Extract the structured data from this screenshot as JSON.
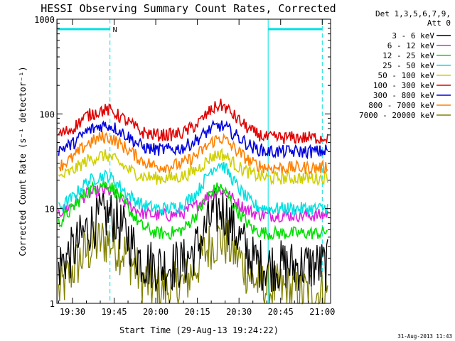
{
  "chart_data": {
    "type": "line",
    "title": "HESSI Observing Summary Count Rates, Corrected",
    "xlabel": "Start Time (29-Aug-13 19:24:22)",
    "ylabel": "Corrected Count Rate (s⁻¹ detector⁻¹)",
    "y_scale": "log",
    "ylim": [
      1,
      1000
    ],
    "xlim": [
      "19:24:22",
      "21:03:00"
    ],
    "x_ticks": [
      "19:30",
      "19:45",
      "20:00",
      "20:15",
      "20:30",
      "20:45",
      "21:00"
    ],
    "y_ticks": [
      "1",
      "10",
      "100",
      "1000"
    ],
    "grid": false,
    "legend_position": "outside-right",
    "legend_header": [
      "Det 1,3,5,6,7,9,",
      "Att 0"
    ],
    "night_marker": "N",
    "timestamp": "31-Aug-2013 11:43",
    "x": [
      "19:25",
      "19:30",
      "19:35",
      "19:40",
      "19:43",
      "19:45",
      "19:50",
      "19:55",
      "20:00",
      "20:05",
      "20:10",
      "20:15",
      "20:20",
      "20:23",
      "20:25",
      "20:30",
      "20:35",
      "20:40",
      "20:45",
      "20:50",
      "20:55",
      "21:00",
      "21:02"
    ],
    "series": [
      {
        "name": "3 - 6 keV",
        "color": "#000000",
        "values": [
          2.5,
          3.5,
          6,
          8,
          8.5,
          8,
          5,
          2.8,
          2.5,
          2.5,
          2.6,
          4,
          8,
          10,
          9,
          5,
          2.8,
          2.5,
          2.5,
          2.5,
          2.5,
          2.5,
          2.5
        ]
      },
      {
        "name": "6 - 12 keV",
        "color": "#e020e0",
        "values": [
          9,
          11,
          14,
          15.5,
          15.5,
          14.5,
          11,
          9,
          8.5,
          8.5,
          9,
          11,
          14.5,
          16,
          15,
          11,
          9,
          8.5,
          8.5,
          8.5,
          8.5,
          8.5,
          9
        ]
      },
      {
        "name": "12 - 25 keV",
        "color": "#00e000",
        "values": [
          7,
          10,
          15,
          18,
          18,
          16,
          10,
          6.5,
          5.5,
          5.5,
          6,
          9,
          15,
          17,
          15,
          9,
          6,
          5.5,
          5.5,
          5.5,
          5.5,
          5.5,
          6
        ]
      },
      {
        "name": "25 - 50 keV",
        "color": "#00e0e0",
        "values": [
          10,
          13,
          19,
          22,
          22,
          20,
          14,
          11,
          10,
          10,
          11,
          15,
          26,
          30,
          27,
          16,
          11,
          10,
          10,
          10,
          10,
          10,
          10.5
        ]
      },
      {
        "name": "50 - 100 keV",
        "color": "#d0d000",
        "values": [
          21,
          25,
          32,
          36,
          36,
          33,
          26,
          22,
          21,
          21,
          22,
          26,
          35,
          38,
          36,
          27,
          23,
          21,
          21,
          21,
          21,
          21,
          22
        ]
      },
      {
        "name": "100 - 300 keV",
        "color": "#e00000",
        "values": [
          60,
          70,
          95,
          108,
          110,
          103,
          82,
          64,
          60,
          60,
          63,
          78,
          110,
          125,
          118,
          85,
          64,
          56,
          56,
          56,
          56,
          56,
          58
        ]
      },
      {
        "name": "300 - 800 keV",
        "color": "#0000e0",
        "values": [
          42,
          48,
          65,
          75,
          76,
          72,
          58,
          45,
          42,
          42,
          44,
          54,
          70,
          75,
          72,
          56,
          44,
          40,
          40,
          40,
          40,
          40,
          42
        ]
      },
      {
        "name": "800 - 7000 keV",
        "color": "#ff8000",
        "values": [
          28,
          34,
          48,
          56,
          57,
          53,
          42,
          32,
          28,
          28,
          30,
          37,
          50,
          56,
          53,
          39,
          30,
          27,
          27,
          27,
          27,
          27,
          28
        ]
      },
      {
        "name": "7000 - 20000 keV",
        "color": "#808000",
        "values": [
          1.3,
          2.3,
          3.5,
          4.5,
          4.6,
          4.2,
          3.2,
          1.8,
          1.4,
          1.4,
          1.6,
          2.6,
          4.3,
          4.8,
          4.5,
          3,
          1.8,
          1.4,
          1.4,
          1.3,
          1.3,
          1.3,
          1.3
        ]
      }
    ]
  }
}
